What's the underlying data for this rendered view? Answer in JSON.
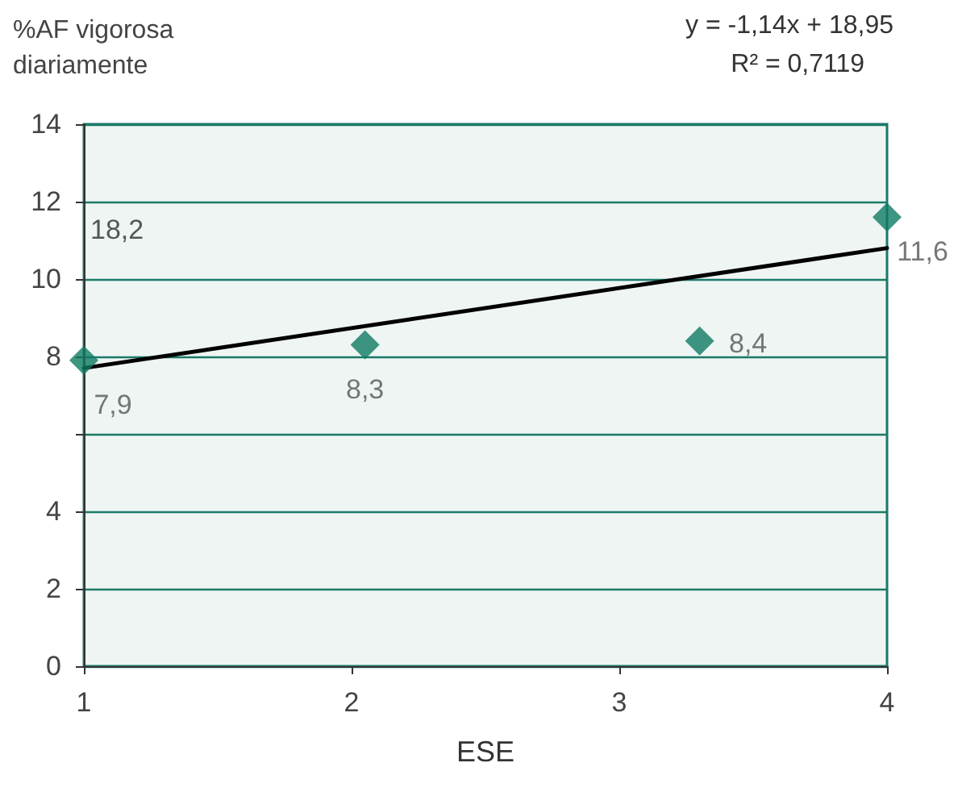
{
  "chart_data": {
    "type": "scatter",
    "ylabel": "%AF vigorosa diariamente",
    "xlabel": "ESE",
    "annotations": [
      "y = -1,14x + 18,95",
      "R² = 0,7119",
      "18,2"
    ],
    "series": [
      {
        "color": "#0e7a63",
        "x": [
          1,
          2.05,
          3.3,
          4
        ],
        "values": [
          7.9,
          8.3,
          8.4,
          11.6
        ],
        "value_labels": [
          "7,9",
          "8,3",
          "8,4",
          "11,6"
        ],
        "marker": "diamond"
      },
      {
        "type": "line",
        "color": "#000000",
        "x": [
          1,
          4
        ],
        "values": [
          7.7,
          10.8
        ],
        "marker": "none",
        "line_style": "solid"
      }
    ],
    "xlim": [
      1,
      4
    ],
    "xticks": [
      1,
      2,
      3,
      4
    ],
    "ylim": [
      0,
      14
    ],
    "yticks": [
      0,
      2,
      4,
      {
        "value": 6,
        "label": null
      },
      8,
      10,
      12,
      14
    ],
    "grid": "y"
  }
}
